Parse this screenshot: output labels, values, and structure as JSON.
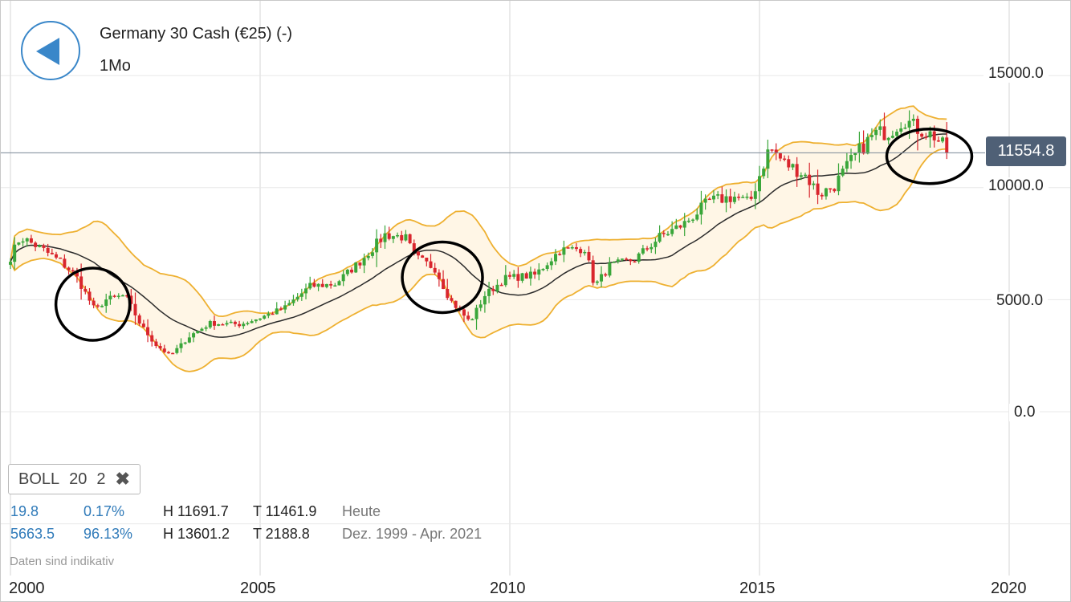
{
  "header": {
    "instrument_title": "Germany 30 Cash (€25) (-)",
    "period": "1Mo"
  },
  "indicator": {
    "name": "BOLL",
    "period": "20",
    "stddev": "2",
    "close_symbol": "✖"
  },
  "stats": [
    {
      "change": "19.8",
      "change_pct": "0.17%",
      "high": "H 11691.7",
      "low": "T 11461.9",
      "range": "Heute"
    },
    {
      "change": "5663.5",
      "change_pct": "96.13%",
      "high": "H 13601.2",
      "low": "T 2188.8",
      "range": "Dez. 1999 - Apr. 2021"
    }
  ],
  "disclaimer": "Daten sind indikativ",
  "current_price": "11554.8",
  "colors": {
    "up": "#3aa63a",
    "down": "#d9262e",
    "band": "#eeb030",
    "band_fill": "#fff6e6",
    "mid": "#2b2b2b",
    "accent": "#3a87c9",
    "price_tag": "#4f6076"
  },
  "icons": {
    "back": "back-arrow-icon",
    "close": "close-icon"
  },
  "chart_data": {
    "type": "candlestick",
    "title": "Germany 30 Cash (€25) (-)",
    "interval": "1Mo",
    "x_tick_labels": [
      "2000",
      "2005",
      "2010",
      "2015",
      "2020"
    ],
    "y_tick_labels": [
      "15000.0",
      "10000.0",
      "5000.0",
      "0.0"
    ],
    "x_range": [
      1999.95,
      2020.3
    ],
    "y_range": [
      -5000,
      18000
    ],
    "grid": true,
    "last_price": 11554.8,
    "close_anchors": [
      [
        2000.0,
        6900
      ],
      [
        2000.2,
        7800
      ],
      [
        2000.6,
        7300
      ],
      [
        2001.0,
        6700
      ],
      [
        2001.3,
        6100
      ],
      [
        2001.7,
        4500
      ],
      [
        2001.9,
        5000
      ],
      [
        2002.3,
        5200
      ],
      [
        2002.6,
        3900
      ],
      [
        2002.9,
        3000
      ],
      [
        2003.2,
        2500
      ],
      [
        2003.6,
        3400
      ],
      [
        2004.0,
        3950
      ],
      [
        2004.6,
        3900
      ],
      [
        2005.0,
        4200
      ],
      [
        2005.5,
        4650
      ],
      [
        2006.0,
        5600
      ],
      [
        2006.5,
        5700
      ],
      [
        2007.0,
        6700
      ],
      [
        2007.5,
        7900
      ],
      [
        2007.9,
        7800
      ],
      [
        2008.1,
        6900
      ],
      [
        2008.5,
        6400
      ],
      [
        2008.8,
        5000
      ],
      [
        2009.2,
        4000
      ],
      [
        2009.5,
        5200
      ],
      [
        2009.9,
        5950
      ],
      [
        2010.5,
        6100
      ],
      [
        2011.0,
        7200
      ],
      [
        2011.5,
        7300
      ],
      [
        2011.7,
        5600
      ],
      [
        2012.0,
        6500
      ],
      [
        2012.5,
        6800
      ],
      [
        2013.0,
        7800
      ],
      [
        2013.5,
        8400
      ],
      [
        2014.0,
        9400
      ],
      [
        2014.5,
        9600
      ],
      [
        2014.8,
        9300
      ],
      [
        2015.2,
        11800
      ],
      [
        2015.5,
        11100
      ],
      [
        2015.9,
        10600
      ],
      [
        2016.2,
        9700
      ],
      [
        2016.5,
        10100
      ],
      [
        2016.9,
        11400
      ],
      [
        2017.3,
        12400
      ],
      [
        2017.6,
        12500
      ],
      [
        2017.9,
        13100
      ],
      [
        2018.1,
        12700
      ],
      [
        2018.5,
        12300
      ],
      [
        2018.8,
        11554.8
      ]
    ],
    "series": [
      {
        "name": "BOLL 20 2",
        "kind": "bollinger",
        "period": 20,
        "stddev": 2
      }
    ]
  }
}
